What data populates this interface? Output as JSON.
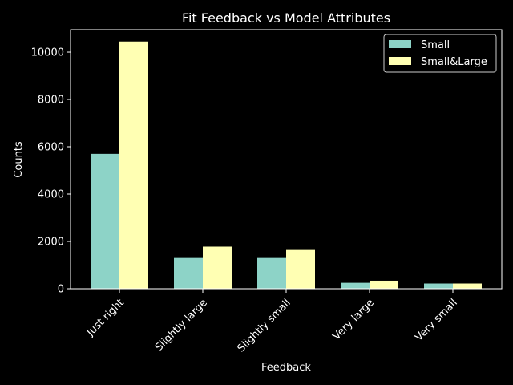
{
  "chart_data": {
    "type": "bar",
    "title": "Fit Feedback vs Model Attributes",
    "xlabel": "Feedback",
    "ylabel": "Counts",
    "categories": [
      "Just right",
      "Slightly large",
      "Slightly small",
      "Very large",
      "Very small"
    ],
    "series": [
      {
        "name": "Small",
        "color": "#8dd3c7",
        "values": [
          5700,
          1300,
          1300,
          250,
          220
        ]
      },
      {
        "name": "Small&Large",
        "color": "#ffffb3",
        "values": [
          10450,
          1780,
          1640,
          340,
          220
        ]
      }
    ],
    "ylim": [
      0,
      10950
    ],
    "yticks": [
      0,
      2000,
      4000,
      6000,
      8000,
      10000
    ],
    "grid": false,
    "legend_position": "top-right",
    "colors": {
      "background": "#000000",
      "axes": "#ffffff",
      "text": "#ffffff"
    }
  }
}
